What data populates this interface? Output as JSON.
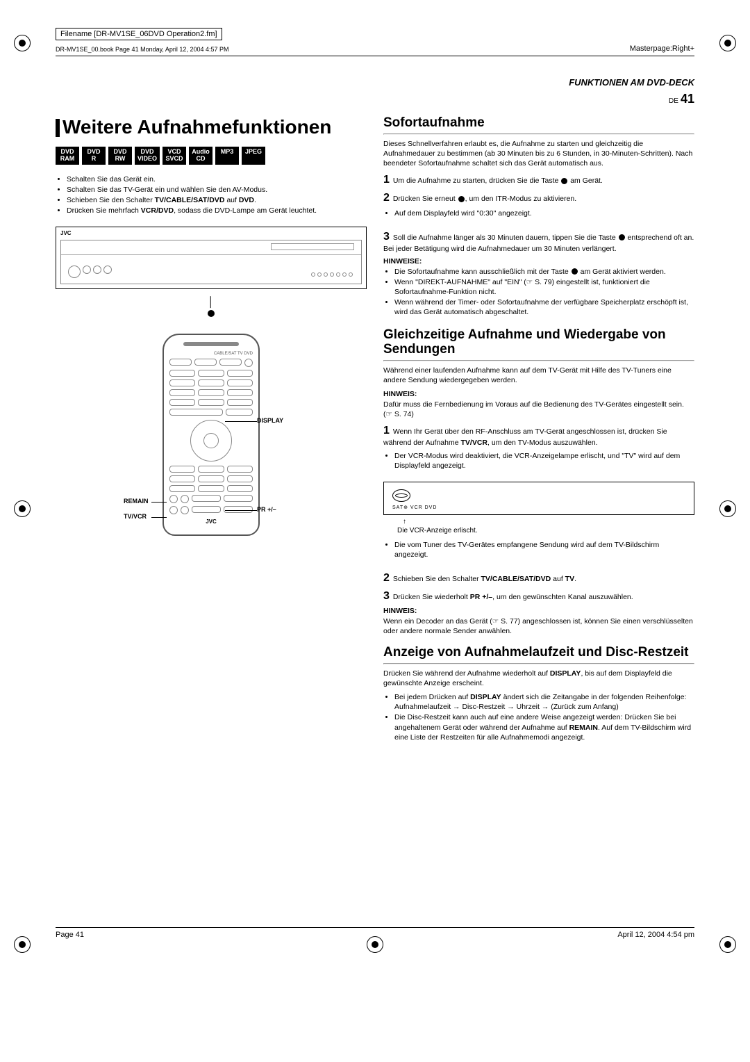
{
  "meta": {
    "filename": "Filename [DR-MV1SE_06DVD Operation2.fm]",
    "bookline": "DR-MV1SE_00.book Page 41 Monday, April 12, 2004 4:57 PM",
    "masterpage": "Masterpage:Right+",
    "section_header": "FUNKTIONEN AM DVD-DECK",
    "lang_code": "DE",
    "page_number": "41",
    "footer_left": "Page 41",
    "footer_right": "April 12, 2004 4:54 pm"
  },
  "left": {
    "title": "Weitere Aufnahmefunktionen",
    "badges": [
      {
        "l1": "DVD",
        "l2": "RAM"
      },
      {
        "l1": "DVD",
        "l2": "R"
      },
      {
        "l1": "DVD",
        "l2": "RW"
      },
      {
        "l1": "DVD",
        "l2": "VIDEO"
      },
      {
        "l1": "VCD",
        "l2": "SVCD"
      },
      {
        "l1": "Audio",
        "l2": "CD"
      },
      {
        "l1": "MP3",
        "l2": ""
      },
      {
        "l1": "JPEG",
        "l2": ""
      }
    ],
    "setup_bullets": [
      "Schalten Sie das Gerät ein.",
      "Schalten Sie das TV-Gerät ein und wählen Sie den AV-Modus.",
      "Schieben Sie den Schalter <b>TV/CABLE/SAT/DVD</b> auf <b>DVD</b>.",
      "Drücken Sie mehrfach <b>VCR/DVD</b>, sodass die DVD-Lampe am Gerät leuchtet."
    ],
    "device_brand": "JVC",
    "remote": {
      "switch_labels": "CABLE/SAT  TV  DVD",
      "label_display": "DISPLAY",
      "label_remain": "REMAIN",
      "label_tvvcr": "TV/VCR",
      "label_pr": "PR +/–",
      "brand": "JVC"
    }
  },
  "right": {
    "s1": {
      "title": "Sofortaufnahme",
      "intro": "Dieses Schnellverfahren erlaubt es, die Aufnahme zu starten und gleichzeitig die Aufnahmedauer zu bestimmen (ab 30 Minuten bis zu 6 Stunden, in 30-Minuten-Schritten). Nach beendeter Sofortaufnahme schaltet sich das Gerät automatisch aus.",
      "step1": "Um die Aufnahme zu starten, drücken Sie die Taste ● am Gerät.",
      "step2": "Drücken Sie erneut ●, um den ITR-Modus zu aktivieren.",
      "step2_sub": "Auf dem Displayfeld wird \"0:30\" angezeigt.",
      "step3": "Soll die Aufnahme länger als 30 Minuten dauern, tippen Sie die Taste ● entsprechend oft an. Bei jeder Betätigung wird die Aufnahmedauer um 30 Minuten verlängert.",
      "hinweise_h": "HINWEISE:",
      "hinweise": [
        "Die Sofortaufnahme kann ausschließlich mit der Taste ● am Gerät aktiviert werden.",
        "Wenn \"DIREKT-AUFNAHME\" auf \"EIN\" (☞ S. 79) eingestellt ist, funktioniert die Sofortaufnahme-Funktion nicht.",
        "Wenn während der Timer- oder Sofortaufnahme der verfügbare Speicherplatz erschöpft ist, wird das Gerät automatisch abgeschaltet."
      ]
    },
    "s2": {
      "title": "Gleichzeitige Aufnahme und Wiedergabe von Sendungen",
      "intro": "Während einer laufenden Aufnahme kann auf dem TV-Gerät mit Hilfe des TV-Tuners eine andere Sendung wiedergegeben werden.",
      "hinweis1_h": "HINWEIS:",
      "hinweis1": "Dafür muss die Fernbedienung im Voraus auf die Bedienung des TV-Gerätes eingestellt sein. (☞ S. 74)",
      "step1": "Wenn Ihr Gerät über den RF-Anschluss am TV-Gerät angeschlossen ist, drücken Sie während der Aufnahme <b>TV/VCR</b>, um den TV-Modus auszuwählen.",
      "step1_sub": "Der VCR-Modus wird deaktiviert, die VCR-Anzeigelampe erlischt, und \"TV\" wird auf dem Displayfeld angezeigt.",
      "vcr_box_labels": "SAT⊕ VCR DVD",
      "vcr_caption": "Die VCR-Anzeige erlischt.",
      "bullet_after": "Die vom Tuner des TV-Gerätes empfangene Sendung wird auf dem TV-Bildschirm angezeigt.",
      "step2": "Schieben Sie den Schalter <b>TV/CABLE/SAT/DVD</b> auf <b>TV</b>.",
      "step3": "Drücken Sie wiederholt <b>PR +/–</b>, um den gewünschten Kanal auszuwählen.",
      "hinweis2_h": "HINWEIS:",
      "hinweis2": "Wenn ein Decoder an das Gerät (☞ S. 77) angeschlossen ist, können Sie einen verschlüsselten oder andere normale Sender anwählen."
    },
    "s3": {
      "title": "Anzeige von Aufnahmelaufzeit und Disc-Restzeit",
      "p1": "Drücken Sie während der Aufnahme wiederholt auf <b>DISPLAY</b>, bis auf dem Displayfeld die gewünschte Anzeige erscheint.",
      "b1a": "Bei jedem Drücken auf <b>DISPLAY</b> ändert sich die Zeitangabe in der folgenden Reihenfolge:",
      "b1b": "Aufnahmelaufzeit → Disc-Restzeit → Uhrzeit → (Zurück zum Anfang)",
      "b2": "Die Disc-Restzeit kann auch auf eine andere Weise angezeigt werden: Drücken Sie bei angehaltenem Gerät oder während der Aufnahme auf <b>REMAIN</b>. Auf dem TV-Bildschirm wird eine Liste der Restzeiten für alle Aufnahmemodi angezeigt."
    }
  }
}
